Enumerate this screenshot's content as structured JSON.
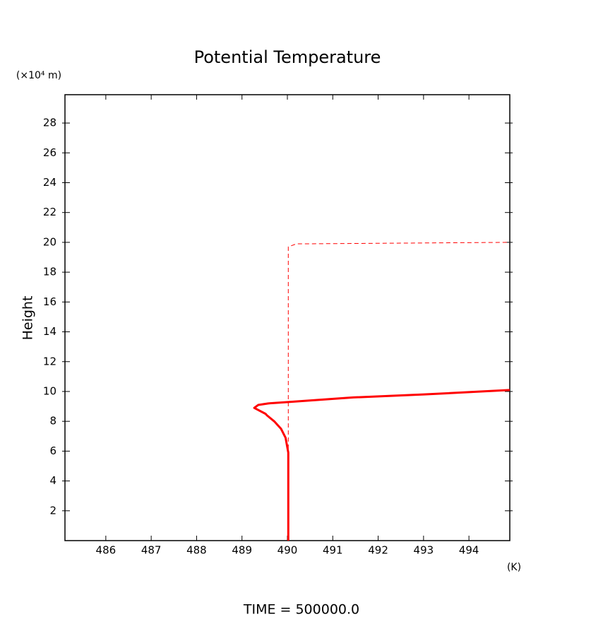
{
  "chart_data": {
    "type": "line",
    "title": "Potential Temperature",
    "y_unit": "(×10⁴ m)",
    "y_label": "Height",
    "x_unit": "(K)",
    "footer": "TIME = 500000.0",
    "xlim": [
      485.1,
      494.9
    ],
    "ylim": [
      0,
      29.9
    ],
    "xticks": [
      486,
      487,
      488,
      489,
      490,
      491,
      492,
      493,
      494
    ],
    "yticks": [
      2,
      4,
      6,
      8,
      10,
      12,
      14,
      16,
      18,
      20,
      22,
      24,
      26,
      28
    ],
    "series": [
      {
        "color": "#ff0000",
        "dashed": false,
        "x": [
          490.02,
          490.02,
          489.96,
          489.86,
          489.71,
          489.55,
          489.52,
          489.27,
          489.36,
          489.58,
          490.05,
          491.45,
          493.01,
          494.9
        ],
        "values": [
          0,
          5.9,
          6.9,
          7.5,
          8.0,
          8.4,
          8.5,
          8.9,
          9.1,
          9.2,
          9.3,
          9.6,
          9.8,
          10.1
        ]
      },
      {
        "color": "#ff0000",
        "dashed": true,
        "x": [
          490.02,
          490.02,
          490.2,
          490.36,
          494.9
        ],
        "values": [
          0,
          19.7,
          19.9,
          19.9,
          20.0
        ]
      }
    ]
  }
}
